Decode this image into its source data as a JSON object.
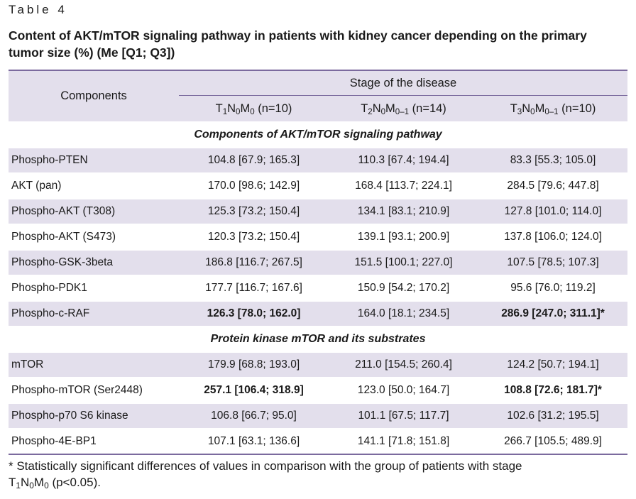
{
  "table_label": "Table 4",
  "title": "Content of AKT/mTOR signaling pathway in patients with kidney cancer depending on the primary tumor size (%) (Me [Q1; Q3])",
  "header": {
    "components": "Components",
    "stage": "Stage of the disease",
    "columns": [
      {
        "t": "T",
        "t_sub": "1",
        "n": "N",
        "n_sub": "0",
        "m": "M",
        "m_sub": "0",
        "count": " (n=10)"
      },
      {
        "t": "T",
        "t_sub": "2",
        "n": "N",
        "n_sub": "0",
        "m": "M",
        "m_sub": "0–1",
        "count": " (n=14)"
      },
      {
        "t": "T",
        "t_sub": "3",
        "n": "N",
        "n_sub": "0",
        "m": "M",
        "m_sub": "0–1",
        "count": " (n=10)"
      }
    ]
  },
  "sections": [
    {
      "title": "Components of AKT/mTOR signaling pathway",
      "rows": [
        {
          "name": "Phospho-PTEN",
          "values": [
            "104.8 [67.9; 165.3]",
            "110.3 [67.4; 194.4]",
            "83.3 [55.3; 105.0]"
          ],
          "bold": [
            false,
            false,
            false
          ]
        },
        {
          "name": "AKT (pan)",
          "values": [
            "170.0 [98.6; 142.9]",
            "168.4 [113.7; 224.1]",
            "284.5 [79.6; 447.8]"
          ],
          "bold": [
            false,
            false,
            false
          ]
        },
        {
          "name": "Phospho-AKT (T308)",
          "values": [
            "125.3 [73.2; 150.4]",
            "134.1 [83.1; 210.9]",
            "127.8 [101.0; 114.0]"
          ],
          "bold": [
            false,
            false,
            false
          ]
        },
        {
          "name": "Phospho-AKT (S473)",
          "values": [
            "120.3 [73.2; 150.4]",
            "139.1 [93.1; 200.9]",
            "137.8 [106.0; 124.0]"
          ],
          "bold": [
            false,
            false,
            false
          ]
        },
        {
          "name": "Phospho-GSK-3beta",
          "values": [
            "186.8 [116.7; 267.5]",
            "151.5 [100.1; 227.0]",
            "107.5 [78.5; 107.3]"
          ],
          "bold": [
            false,
            false,
            false
          ]
        },
        {
          "name": "Phospho-PDK1",
          "values": [
            "177.7 [116.7; 167.6]",
            "150.9 [54.2; 170.2]",
            "95.6 [76.0; 119.2]"
          ],
          "bold": [
            false,
            false,
            false
          ]
        },
        {
          "name": "Phospho-c-RAF",
          "values": [
            "126.3 [78.0; 162.0]",
            "164.0 [18.1; 234.5]",
            "286.9 [247.0; 311.1]*"
          ],
          "bold": [
            true,
            false,
            true
          ]
        }
      ]
    },
    {
      "title": "Protein kinase mTOR and its substrates",
      "rows": [
        {
          "name": "mTOR",
          "values": [
            "179.9 [68.8; 193.0]",
            "211.0 [154.5; 260.4]",
            "124.2 [50.7; 194.1]"
          ],
          "bold": [
            false,
            false,
            false
          ]
        },
        {
          "name": "Phospho-mTOR (Ser2448)",
          "values": [
            "257.1 [106.4; 318.9]",
            "123.0 [50.0; 164.7]",
            "108.8 [72.6; 181.7]*"
          ],
          "bold": [
            true,
            false,
            true
          ]
        },
        {
          "name": "Phospho-p70 S6 kinase",
          "values": [
            "106.8 [66.7; 95.0]",
            "101.1 [67.5; 117.7]",
            "102.6 [31.2; 195.5]"
          ],
          "bold": [
            false,
            false,
            false
          ]
        },
        {
          "name": "Phospho-4E-BP1",
          "values": [
            "107.1 [63.1; 136.6]",
            "141.1 [71.8; 151.8]",
            "266.7 [105.5; 489.9]"
          ],
          "bold": [
            false,
            false,
            false
          ]
        }
      ]
    }
  ],
  "footnote": {
    "text": "* Statistically significant differences of values in comparison with the group of patients with stage",
    "stage_t": "T",
    "stage_t_sub": "1",
    "stage_n": "N",
    "stage_n_sub": "0",
    "stage_m": "M",
    "stage_m_sub": "0",
    "p": " (p<0.05)."
  },
  "colors": {
    "accent_rule": "#7b6a9e",
    "row_shade": "#e3dfec"
  }
}
